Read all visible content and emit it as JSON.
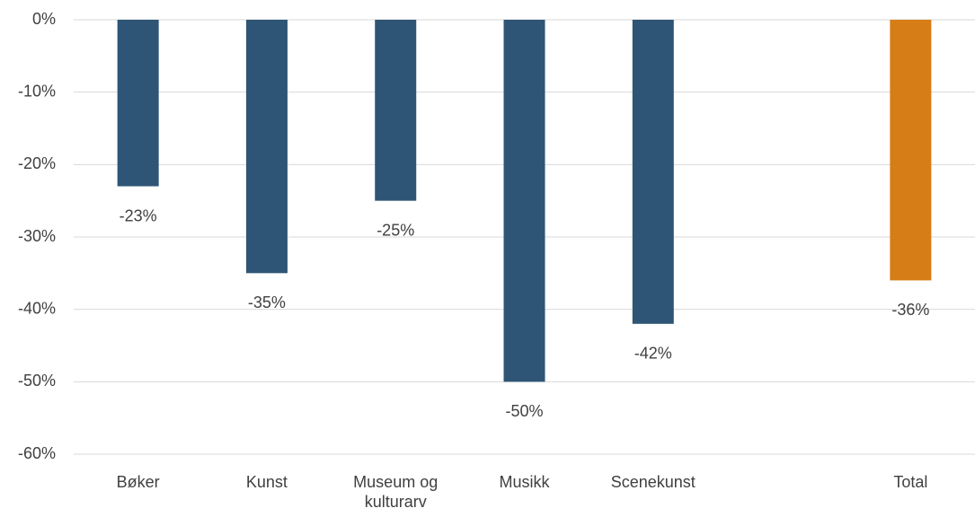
{
  "chart_data": {
    "type": "bar",
    "categories": [
      "Bøker",
      "Kunst",
      "Museum og kulturarv",
      "Musikk",
      "Scenekunst",
      null,
      "Total"
    ],
    "values": [
      -23,
      -35,
      -25,
      -50,
      -42,
      null,
      -36
    ],
    "value_labels": [
      "-23%",
      "-35%",
      "-25%",
      "-50%",
      "-42%",
      null,
      "-36%"
    ],
    "colors": [
      "#2e5575",
      "#2e5575",
      "#2e5575",
      "#2e5575",
      "#2e5575",
      null,
      "#d67d17"
    ],
    "ylim": [
      -60,
      0
    ],
    "yticks": [
      {
        "value": 0,
        "label": "0%"
      },
      {
        "value": -10,
        "label": "-10%"
      },
      {
        "value": -20,
        "label": "-20%"
      },
      {
        "value": -30,
        "label": "-30%"
      },
      {
        "value": -40,
        "label": "-40%"
      },
      {
        "value": -50,
        "label": "-50%"
      },
      {
        "value": -60,
        "label": "-60%"
      }
    ],
    "grid": true
  }
}
